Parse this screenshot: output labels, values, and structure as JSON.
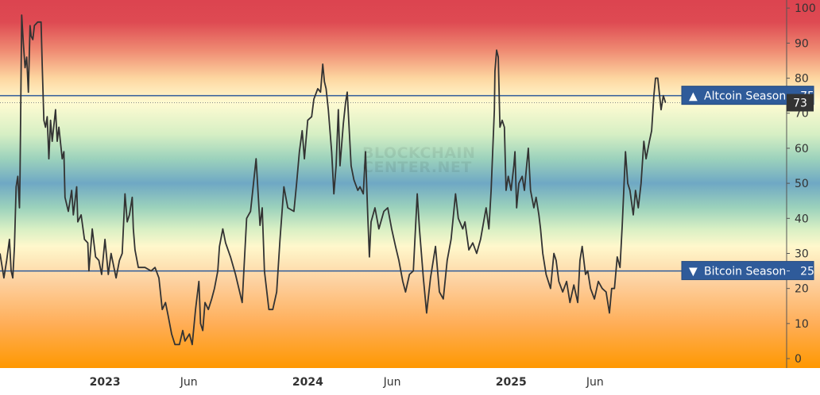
{
  "chart_data": {
    "type": "line",
    "title": "",
    "xlabel": "",
    "ylabel": "",
    "xlim": [
      "2022-06-26",
      "2026-05-12"
    ],
    "ylim": [
      -2.7,
      102.3
    ],
    "y_ticks": [
      0,
      10,
      20,
      30,
      40,
      50,
      60,
      70,
      80,
      90,
      100
    ],
    "x_ticks": [
      {
        "date": "2023-01-01",
        "label": "2023",
        "major": true
      },
      {
        "date": "2023-06-01",
        "label": "Jun",
        "major": false
      },
      {
        "date": "2024-01-01",
        "label": "2024",
        "major": true
      },
      {
        "date": "2024-06-01",
        "label": "Jun",
        "major": false
      },
      {
        "date": "2025-01-01",
        "label": "2025",
        "major": true
      },
      {
        "date": "2025-06-01",
        "label": "Jun",
        "major": false
      }
    ],
    "y_axis_position": "right",
    "grid": false,
    "line_color": "#333333",
    "background_gradient": [
      {
        "value": 102,
        "color": "#dc4450"
      },
      {
        "value": 96,
        "color": "#de4a52"
      },
      {
        "value": 88,
        "color": "#ef8a72"
      },
      {
        "value": 80,
        "color": "#fdd6a0"
      },
      {
        "value": 73,
        "color": "#fffbd2"
      },
      {
        "value": 64,
        "color": "#d6efc4"
      },
      {
        "value": 57,
        "color": "#9cd2bc"
      },
      {
        "value": 50,
        "color": "#6fa8c4"
      },
      {
        "value": 43,
        "color": "#9cd2bc"
      },
      {
        "value": 37,
        "color": "#d8efc4"
      },
      {
        "value": 32,
        "color": "#fff8cc"
      },
      {
        "value": 22,
        "color": "#fdd1a0"
      },
      {
        "value": 10,
        "color": "#ffae58"
      },
      {
        "value": -3,
        "color": "#ff9800"
      }
    ],
    "levels": [
      {
        "name": "Altcoin Season",
        "value": 75,
        "label": "Altcoin Season",
        "value_label": "75",
        "arrow": "▲",
        "color": "#2f5b9a"
      },
      {
        "name": "Bitcoin Season",
        "value": 25,
        "label": "Bitcoin Season",
        "value_label": "25",
        "arrow": "▼",
        "color": "#2f5b9a"
      }
    ],
    "current": {
      "value": 73,
      "label": "73",
      "color": "#333333"
    },
    "watermark": [
      "BLOCKCHAIN",
      "CENTER.NET"
    ],
    "series": [
      {
        "x": [
          "2022-06-26",
          "2022-07-01",
          "2022-07-03",
          "2022-07-08",
          "2022-07-13",
          "2022-07-16",
          "2022-07-19",
          "2022-07-22",
          "2022-07-25",
          "2022-07-28",
          "2022-07-31",
          "2022-08-01",
          "2022-08-04",
          "2022-08-07",
          "2022-08-10",
          "2022-08-13",
          "2022-08-16",
          "2022-08-19",
          "2022-08-21",
          "2022-08-24",
          "2022-08-27",
          "2022-09-02",
          "2022-09-08",
          "2022-09-10",
          "2022-09-13",
          "2022-09-16",
          "2022-09-19",
          "2022-09-22",
          "2022-09-25",
          "2022-09-28",
          "2022-10-04",
          "2022-10-07",
          "2022-10-10",
          "2022-10-16",
          "2022-10-19",
          "2022-10-21",
          "2022-10-27",
          "2022-11-02",
          "2022-11-05",
          "2022-11-11",
          "2022-11-13",
          "2022-11-19",
          "2022-11-25",
          "2022-12-01",
          "2022-12-03",
          "2022-12-09",
          "2022-12-15",
          "2022-12-21",
          "2022-12-26",
          "2023-01-01",
          "2023-01-07",
          "2023-01-12",
          "2023-01-21",
          "2023-01-27",
          "2023-02-01",
          "2023-02-06",
          "2023-02-10",
          "2023-02-14",
          "2023-02-19",
          "2023-02-21",
          "2023-02-24",
          "2023-03-02",
          "2023-03-14",
          "2023-03-25",
          "2023-04-01",
          "2023-04-08",
          "2023-04-14",
          "2023-04-20",
          "2023-04-25",
          "2023-05-01",
          "2023-05-07",
          "2023-05-15",
          "2023-05-21",
          "2023-05-25",
          "2023-06-02",
          "2023-06-07",
          "2023-06-13",
          "2023-06-19",
          "2023-06-22",
          "2023-06-26",
          "2023-06-30",
          "2023-07-06",
          "2023-07-12",
          "2023-07-17",
          "2023-07-23",
          "2023-07-26",
          "2023-08-01",
          "2023-08-06",
          "2023-08-15",
          "2023-08-24",
          "2023-09-05",
          "2023-09-13",
          "2023-09-20",
          "2023-09-30",
          "2023-10-07",
          "2023-10-11",
          "2023-10-15",
          "2023-10-23",
          "2023-10-30",
          "2023-11-06",
          "2023-11-12",
          "2023-11-19",
          "2023-11-26",
          "2023-12-07",
          "2023-12-12",
          "2023-12-17",
          "2023-12-22",
          "2023-12-26",
          "2024-01-01",
          "2024-01-08",
          "2024-01-12",
          "2024-01-19",
          "2024-01-24",
          "2024-01-28",
          "2024-01-31",
          "2024-02-03",
          "2024-02-07",
          "2024-02-13",
          "2024-02-17",
          "2024-02-21",
          "2024-02-25",
          "2024-02-28",
          "2024-03-05",
          "2024-03-09",
          "2024-03-12",
          "2024-03-16",
          "2024-03-19",
          "2024-03-24",
          "2024-03-31",
          "2024-04-04",
          "2024-04-10",
          "2024-04-14",
          "2024-04-18",
          "2024-04-21",
          "2024-04-24",
          "2024-05-01",
          "2024-05-08",
          "2024-05-17",
          "2024-05-24",
          "2024-05-31",
          "2024-06-07",
          "2024-06-13",
          "2024-06-20",
          "2024-06-25",
          "2024-07-02",
          "2024-07-09",
          "2024-07-16",
          "2024-07-20",
          "2024-07-27",
          "2024-08-02",
          "2024-08-09",
          "2024-08-18",
          "2024-08-25",
          "2024-09-01",
          "2024-09-08",
          "2024-09-15",
          "2024-09-23",
          "2024-09-28",
          "2024-10-06",
          "2024-10-10",
          "2024-10-17",
          "2024-10-24",
          "2024-10-31",
          "2024-11-07",
          "2024-11-17",
          "2024-11-22",
          "2024-11-26",
          "2024-12-02",
          "2024-12-03",
          "2024-12-06",
          "2024-12-09",
          "2024-12-12",
          "2024-12-16",
          "2024-12-20",
          "2024-12-23",
          "2024-12-27",
          "2025-01-01",
          "2025-01-06",
          "2025-01-08",
          "2025-01-11",
          "2025-01-15",
          "2025-01-21",
          "2025-01-25",
          "2025-01-29",
          "2025-02-01",
          "2025-02-05",
          "2025-02-11",
          "2025-02-15",
          "2025-02-20",
          "2025-02-23",
          "2025-02-27",
          "2025-03-05",
          "2025-03-09",
          "2025-03-13",
          "2025-03-19",
          "2025-03-23",
          "2025-03-28",
          "2025-04-04",
          "2025-04-11",
          "2025-04-17",
          "2025-04-24",
          "2025-05-01",
          "2025-05-05",
          "2025-05-09",
          "2025-05-15",
          "2025-05-19",
          "2025-05-24",
          "2025-05-31",
          "2025-06-07",
          "2025-06-14",
          "2025-06-21",
          "2025-06-27",
          "2025-07-01",
          "2025-07-06",
          "2025-07-11",
          "2025-07-16",
          "2025-07-20",
          "2025-07-26",
          "2025-07-30",
          "2025-08-03",
          "2025-08-09",
          "2025-08-13",
          "2025-08-18",
          "2025-08-23",
          "2025-08-28",
          "2025-09-01",
          "2025-09-07",
          "2025-09-11",
          "2025-09-15",
          "2025-09-18",
          "2025-09-22",
          "2025-09-28",
          "2025-10-02",
          "2025-10-06"
        ],
        "values": [
          30,
          25,
          23,
          28,
          34,
          25,
          23,
          32,
          49,
          52,
          43,
          52,
          98,
          90,
          83,
          86,
          76,
          95,
          92,
          91,
          95,
          96,
          96,
          84,
          68,
          66,
          69,
          57,
          68,
          62,
          71,
          62,
          66,
          57,
          59,
          46,
          42,
          48,
          41,
          49,
          39,
          41,
          34,
          33,
          25,
          37,
          29,
          28,
          24,
          34,
          24,
          30,
          23,
          28,
          30,
          47,
          39,
          41,
          46,
          37,
          31,
          26,
          26,
          25,
          26,
          23,
          14,
          16,
          12,
          7,
          4,
          4,
          8,
          5,
          7,
          4,
          14,
          22,
          10,
          8,
          16,
          14,
          17,
          20,
          25,
          32,
          37,
          33,
          29,
          24,
          16,
          40,
          42,
          57,
          38,
          43,
          25,
          14,
          14,
          19,
          34,
          49,
          43,
          42,
          50,
          59,
          65,
          57,
          68,
          69,
          74,
          77,
          76,
          84,
          79,
          77,
          71,
          59,
          47,
          55,
          71,
          55,
          67,
          73,
          76,
          64,
          55,
          51,
          48,
          49,
          47,
          59,
          41,
          29,
          39,
          43,
          37,
          42,
          43,
          37,
          32,
          28,
          22,
          19,
          24,
          25,
          47,
          37,
          23,
          13,
          23,
          32,
          19,
          17,
          28,
          34,
          47,
          40,
          37,
          39,
          31,
          33,
          30,
          34,
          43,
          37,
          48,
          71,
          82,
          88,
          86,
          66,
          68,
          66,
          48,
          52,
          48,
          55,
          59,
          43,
          50,
          52,
          48,
          55,
          60,
          48,
          43,
          46,
          41,
          37,
          30,
          24,
          22,
          20,
          30,
          28,
          22,
          19,
          22,
          16,
          21,
          16,
          28,
          32,
          24,
          25,
          20,
          17,
          22,
          20,
          19,
          13,
          20,
          20,
          29,
          26,
          38,
          59,
          50,
          48,
          41,
          48,
          43,
          50,
          62,
          57,
          62,
          65,
          75,
          80,
          80,
          71,
          75,
          73
        ]
      }
    ]
  }
}
